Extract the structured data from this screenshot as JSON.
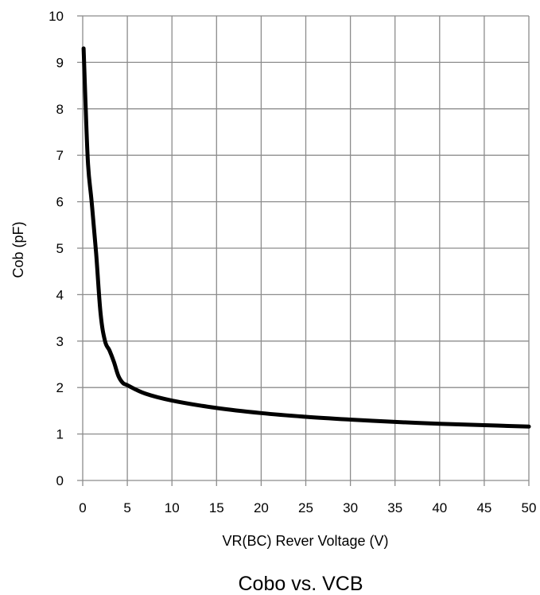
{
  "chart_data": {
    "type": "line",
    "title": "",
    "caption": "Cobo vs. VCB",
    "xlabel": "VR(BC) Rever Voltage (V)",
    "ylabel": "Cob (pF)",
    "xlim": [
      0,
      50
    ],
    "ylim": [
      0,
      10
    ],
    "x_ticks": [
      "0",
      "5",
      "10",
      "15",
      "20",
      "25",
      "30",
      "35",
      "40",
      "45",
      "50"
    ],
    "y_ticks": [
      "0",
      "1",
      "2",
      "3",
      "4",
      "5",
      "6",
      "7",
      "8",
      "9",
      "10"
    ],
    "grid": true,
    "legend": "none",
    "series": [
      {
        "color": "#000000",
        "x": [
          0.1,
          0.3,
          0.6,
          1.0,
          1.5,
          2.0,
          2.5,
          3.0,
          3.5,
          4.0,
          4.5,
          5.0,
          7.0,
          10.0,
          15.0,
          20.0,
          25.0,
          30.0,
          35.0,
          40.0,
          45.0,
          50.0
        ],
        "y": [
          9.3,
          8.2,
          6.8,
          6.0,
          4.9,
          3.6,
          3.0,
          2.8,
          2.55,
          2.25,
          2.1,
          2.05,
          1.87,
          1.72,
          1.56,
          1.45,
          1.37,
          1.31,
          1.26,
          1.22,
          1.19,
          1.16
        ]
      }
    ]
  }
}
